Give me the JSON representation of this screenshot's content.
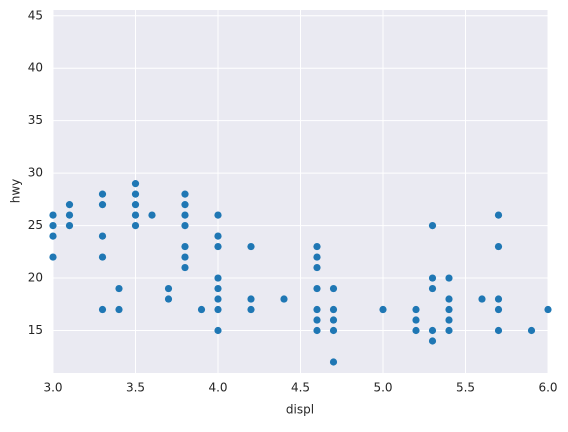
{
  "chart_data": {
    "type": "scatter",
    "x_label": "displ",
    "y_label": "hwy",
    "x": [
      3.0,
      3.0,
      3.0,
      3.0,
      3.1,
      3.1,
      3.1,
      3.3,
      3.3,
      3.3,
      3.3,
      3.3,
      3.4,
      3.4,
      3.5,
      3.5,
      3.5,
      3.5,
      3.5,
      3.6,
      3.7,
      3.7,
      3.8,
      3.8,
      3.8,
      3.8,
      3.8,
      3.8,
      3.8,
      3.9,
      4.0,
      4.0,
      4.0,
      4.0,
      4.0,
      4.0,
      4.0,
      4.0,
      4.2,
      4.2,
      4.2,
      4.4,
      4.6,
      4.6,
      4.6,
      4.6,
      4.6,
      4.6,
      4.6,
      4.7,
      4.7,
      4.7,
      4.7,
      4.7,
      5.0,
      5.2,
      5.2,
      5.2,
      5.3,
      5.3,
      5.3,
      5.3,
      5.3,
      5.4,
      5.4,
      5.4,
      5.4,
      5.4,
      5.6,
      5.7,
      5.7,
      5.7,
      5.7,
      5.7,
      5.9,
      6.0
    ],
    "values": [
      26,
      25,
      24,
      22,
      27,
      26,
      25,
      28,
      27,
      24,
      22,
      17,
      19,
      17,
      29,
      28,
      27,
      26,
      25,
      26,
      19,
      18,
      28,
      27,
      26,
      25,
      23,
      22,
      21,
      17,
      26,
      24,
      23,
      20,
      19,
      18,
      17,
      15,
      23,
      18,
      17,
      18,
      23,
      22,
      21,
      19,
      17,
      16,
      15,
      19,
      17,
      16,
      15,
      12,
      17,
      17,
      16,
      15,
      25,
      20,
      19,
      15,
      14,
      20,
      18,
      17,
      16,
      15,
      18,
      26,
      23,
      18,
      17,
      15,
      15,
      17
    ],
    "color": "#1f77b4",
    "xlim": [
      3.0,
      6.0
    ],
    "xticks": [
      {
        "value": 3.0,
        "label": "3.0"
      },
      {
        "value": 3.5,
        "label": "3.5"
      },
      {
        "value": 4.0,
        "label": "4.0"
      },
      {
        "value": 4.5,
        "label": "4.5"
      },
      {
        "value": 5.0,
        "label": "5.0"
      },
      {
        "value": 5.5,
        "label": "5.5"
      },
      {
        "value": 6.0,
        "label": "6.0"
      }
    ],
    "ylim": [
      10.95,
      45.55
    ],
    "yticks": [
      15,
      20,
      25,
      30,
      35,
      40,
      45
    ],
    "grid": true
  }
}
